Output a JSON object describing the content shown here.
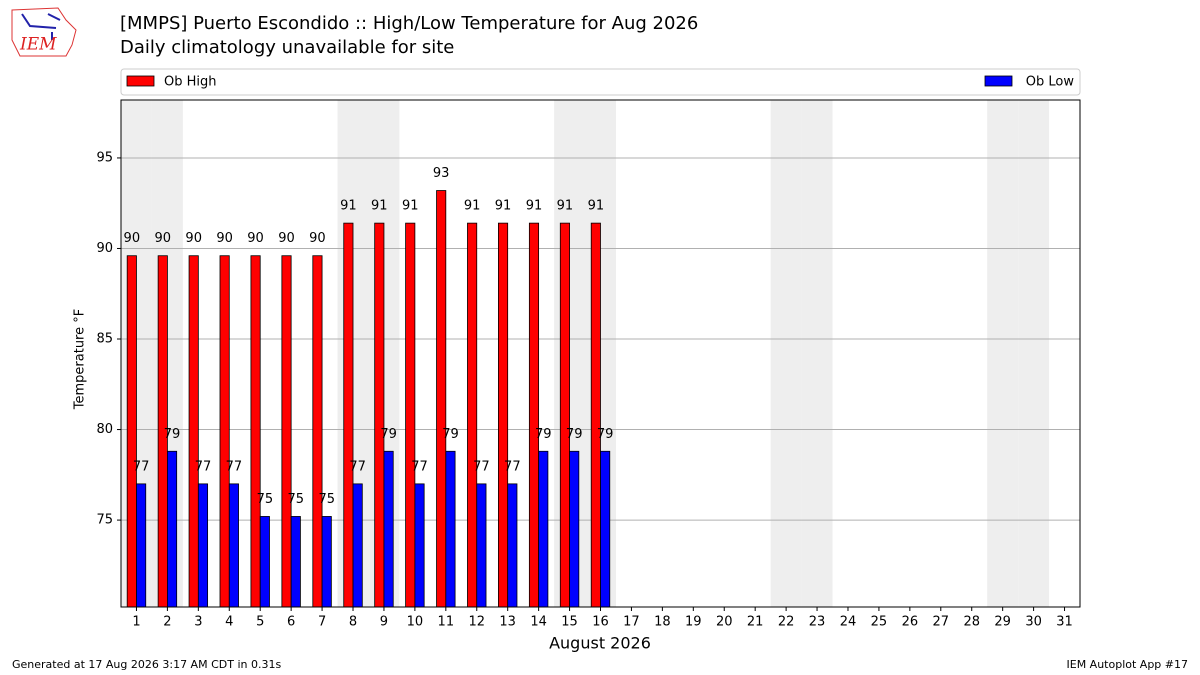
{
  "logo": "IEM",
  "chart_data": {
    "type": "bar",
    "title": "[MMPS] Puerto Escondido :: High/Low Temperature for Aug 2026",
    "subtitle": "Daily climatology unavailable for site",
    "xlabel": "August 2026",
    "ylabel": "Temperature °F",
    "x": [
      1,
      2,
      3,
      4,
      5,
      6,
      7,
      8,
      9,
      10,
      11,
      12,
      13,
      14,
      15,
      16,
      17,
      18,
      19,
      20,
      21,
      22,
      23,
      24,
      25,
      26,
      27,
      28,
      29,
      30,
      31
    ],
    "series": [
      {
        "name": "Ob High",
        "color": "#ff0000",
        "values": [
          89.6,
          89.6,
          89.6,
          89.6,
          89.6,
          89.6,
          89.6,
          91.4,
          91.4,
          91.4,
          93.2,
          91.4,
          91.4,
          91.4,
          91.4,
          91.4,
          null,
          null,
          null,
          null,
          null,
          null,
          null,
          null,
          null,
          null,
          null,
          null,
          null,
          null,
          null
        ],
        "value_labels": [
          "90",
          "90",
          "90",
          "90",
          "90",
          "90",
          "90",
          "91",
          "91",
          "91",
          "93",
          "91",
          "91",
          "91",
          "91",
          "91",
          null,
          null,
          null,
          null,
          null,
          null,
          null,
          null,
          null,
          null,
          null,
          null,
          null,
          null,
          null
        ]
      },
      {
        "name": "Ob Low",
        "color": "#0000ff",
        "values": [
          77,
          78.8,
          77,
          77,
          75.2,
          75.2,
          75.2,
          77,
          78.8,
          77,
          78.8,
          77,
          77,
          78.8,
          78.8,
          78.8,
          null,
          null,
          null,
          null,
          null,
          null,
          null,
          null,
          null,
          null,
          null,
          null,
          null,
          null,
          null
        ],
        "value_labels": [
          "77",
          "79",
          "77",
          "77",
          "75",
          "75",
          "75",
          "77",
          "79",
          "77",
          "79",
          "77",
          "77",
          "79",
          "79",
          "79",
          null,
          null,
          null,
          null,
          null,
          null,
          null,
          null,
          null,
          null,
          null,
          null,
          null,
          null,
          null
        ]
      }
    ],
    "xlim": [
      0.5,
      31.5
    ],
    "xticks": [
      1,
      2,
      3,
      4,
      5,
      6,
      7,
      8,
      9,
      10,
      11,
      12,
      13,
      14,
      15,
      16,
      17,
      18,
      19,
      20,
      21,
      22,
      23,
      24,
      25,
      26,
      27,
      28,
      29,
      30,
      31
    ],
    "ylim": [
      70.2,
      98.2
    ],
    "yticks": [
      75,
      80,
      85,
      90,
      95
    ],
    "grid": true,
    "footer_left": "Generated at 17 Aug 2026 3:17 AM CDT in 0.31s",
    "footer_right": "IEM Autoplot App #17"
  }
}
